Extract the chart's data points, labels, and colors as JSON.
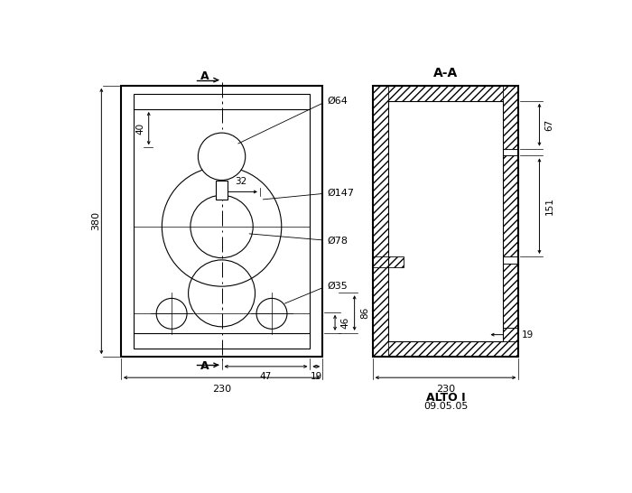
{
  "fig_width": 7.0,
  "fig_height": 5.46,
  "dpi": 100,
  "bg_color": "#ffffff",
  "line_color": "#000000",
  "title_right": "A-A",
  "label_alto": "ALTO I",
  "label_date": "09.05.05",
  "dims": {
    "total_height": "380",
    "total_width_front": "230",
    "total_width_section": "230",
    "dim_32": "32",
    "dim_40": "40",
    "dim_46": "46",
    "dim_47": "47",
    "dim_19_bot": "19",
    "dim_19_right": "19",
    "dim_86": "86",
    "dim_67": "67",
    "dim_151": "151",
    "diam_64": "Ø64",
    "diam_147": "Ø147",
    "diam_78": "Ø78",
    "diam_35": "Ø35",
    "label_A": "A"
  }
}
